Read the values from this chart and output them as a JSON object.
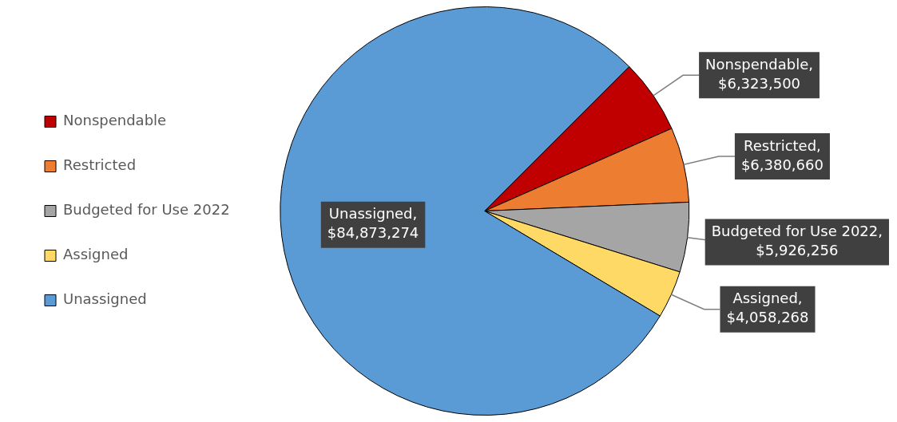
{
  "chart_data": {
    "type": "pie",
    "categories": [
      "Nonspendable",
      "Restricted",
      "Budgeted for Use 2022",
      "Assigned",
      "Unassigned"
    ],
    "values": [
      6323500,
      6380660,
      5926256,
      4058268,
      84873274
    ],
    "colors": [
      "#c00000",
      "#ed7d31",
      "#a5a5a5",
      "#ffd966",
      "#5b9bd5"
    ],
    "value_labels": [
      "Nonspendable, $6,323,500",
      "Restricted, $6,380,660",
      "Budgeted for Use 2022,  $5,926,256",
      "Assigned, $4,058,268",
      "Unassigned, $84,873,274"
    ],
    "legend": "left"
  }
}
